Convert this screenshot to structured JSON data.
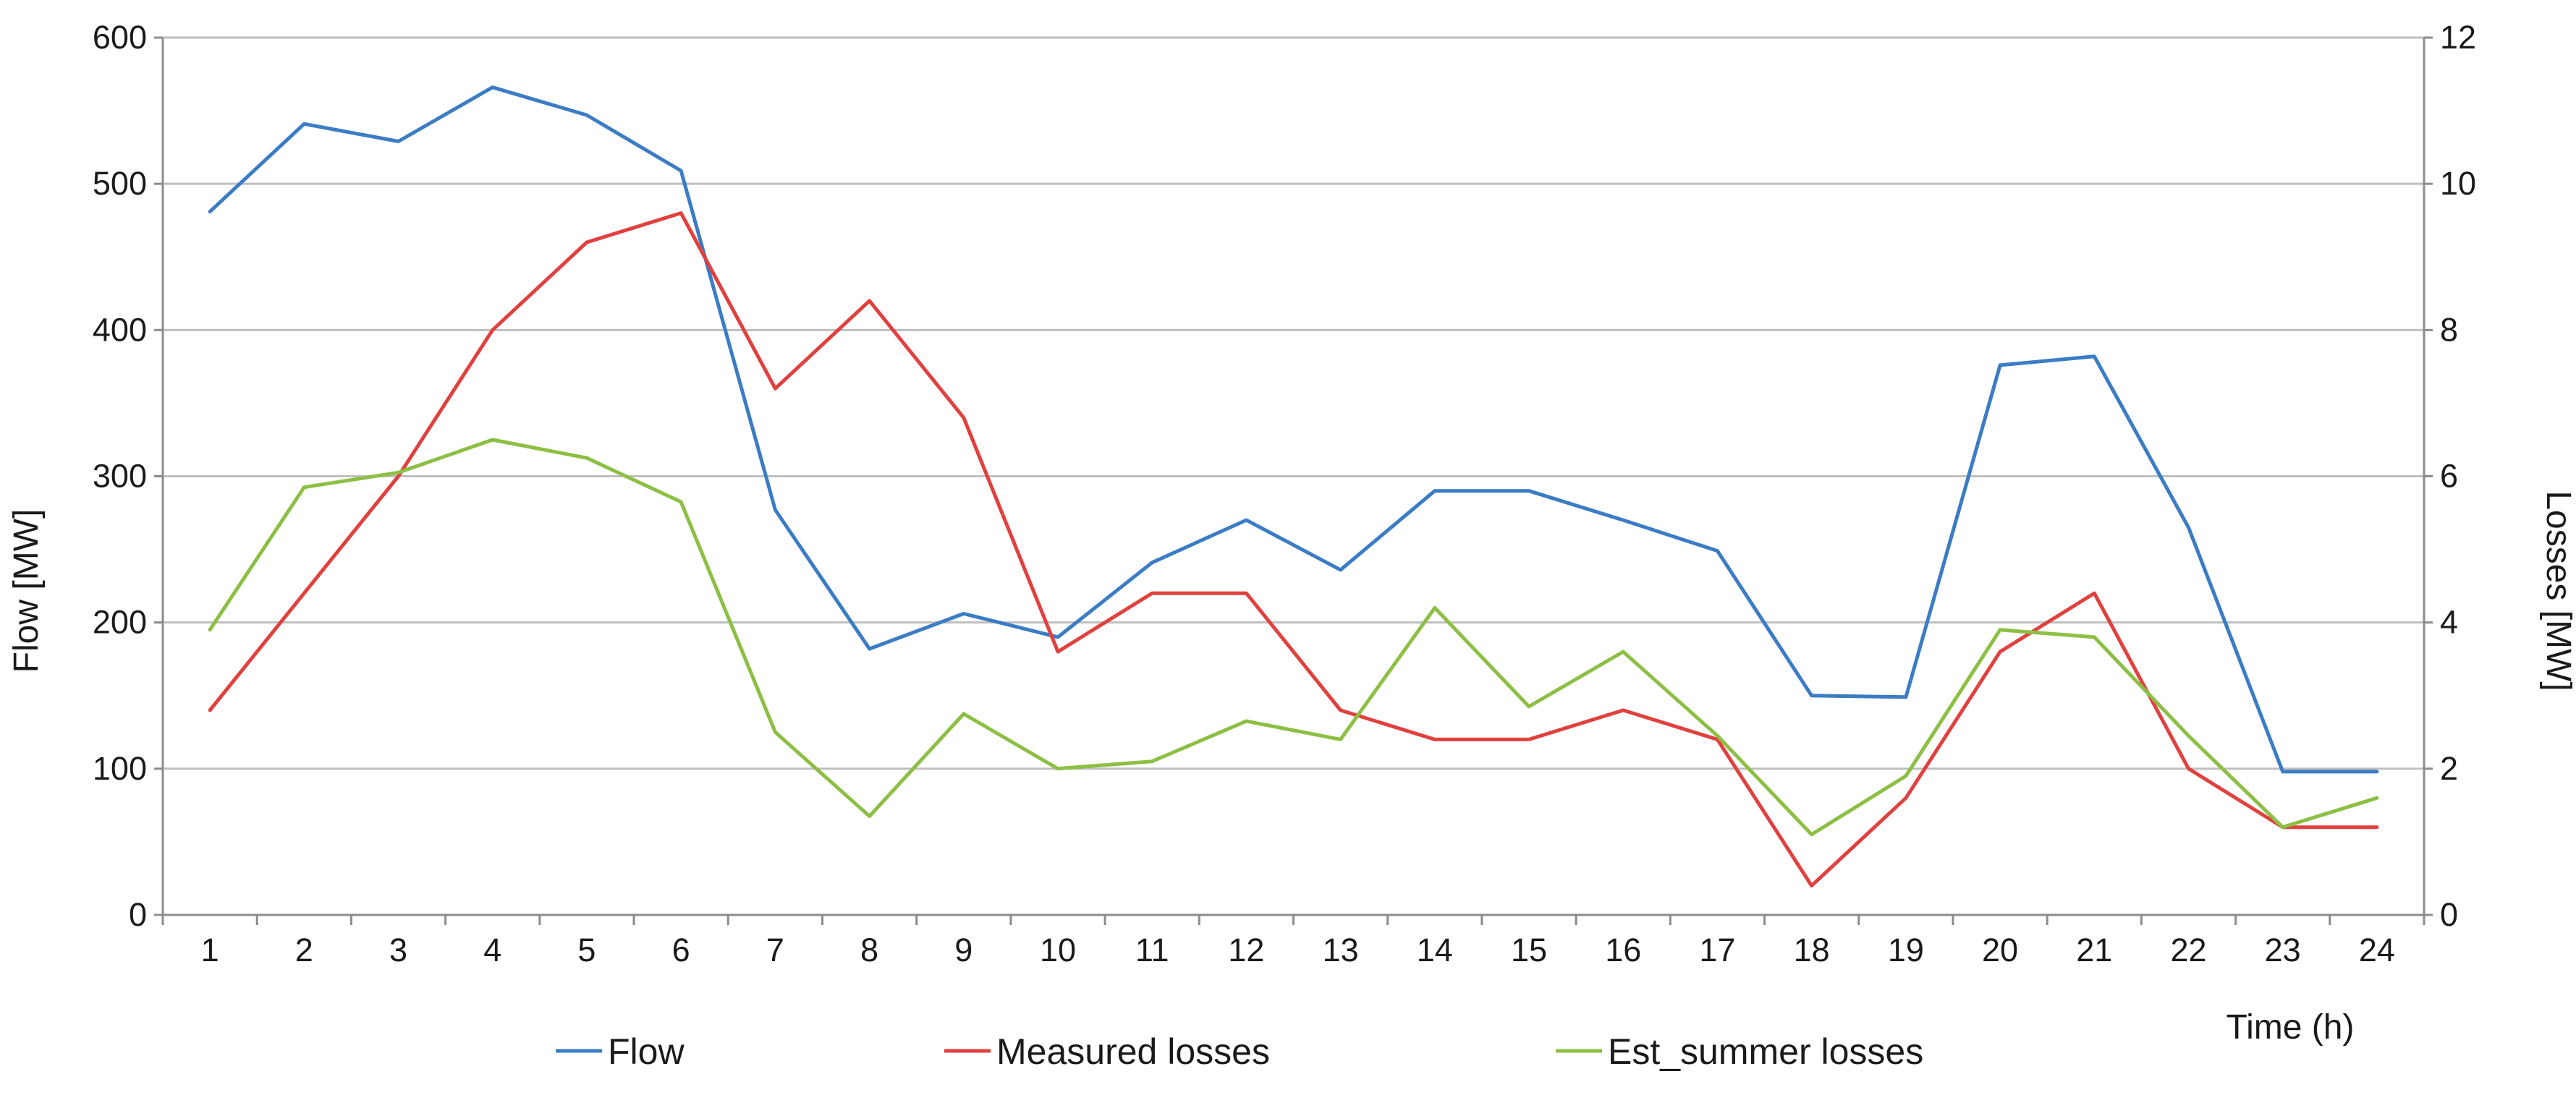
{
  "chart_data": {
    "type": "line",
    "title": "",
    "categories": [
      "1",
      "2",
      "3",
      "4",
      "5",
      "6",
      "7",
      "8",
      "9",
      "10",
      "11",
      "12",
      "13",
      "14",
      "15",
      "16",
      "17",
      "18",
      "19",
      "20",
      "21",
      "22",
      "23",
      "24"
    ],
    "xlabel": "Time (h)",
    "ylabel_left": "Flow [MW]",
    "ylabel_right": "Losses [MW]",
    "y_left": {
      "min": 0,
      "max": 600,
      "ticks": [
        0,
        100,
        200,
        300,
        400,
        500,
        600
      ]
    },
    "y_right": {
      "min": 0,
      "max": 12,
      "ticks": [
        0,
        2,
        4,
        6,
        8,
        10,
        12
      ]
    },
    "grid": true,
    "legend_position": "bottom",
    "series": [
      {
        "name": "Flow",
        "axis": "left",
        "color": "#3b7cc4",
        "values": [
          481,
          541,
          529,
          566,
          547,
          509,
          277,
          182,
          206,
          190,
          241,
          270,
          236,
          290,
          290,
          270,
          249,
          150,
          149,
          376,
          382,
          265,
          98,
          98
        ]
      },
      {
        "name": "Measured losses",
        "axis": "right",
        "color": "#e0413f",
        "values": [
          2.8,
          4.4,
          6.0,
          8.0,
          9.2,
          9.6,
          7.2,
          8.4,
          6.8,
          3.6,
          4.4,
          4.4,
          2.8,
          2.4,
          2.4,
          2.8,
          2.4,
          0.4,
          1.6,
          3.6,
          4.4,
          2.0,
          1.2,
          1.2
        ]
      },
      {
        "name": "Est_summer losses",
        "axis": "right",
        "color": "#8cbf44",
        "values": [
          3.9,
          5.85,
          6.05,
          6.5,
          6.25,
          5.65,
          2.5,
          1.35,
          2.75,
          2.0,
          2.1,
          2.65,
          2.4,
          4.2,
          2.85,
          3.6,
          2.45,
          1.1,
          1.9,
          3.9,
          3.8,
          2.45,
          1.2,
          1.6
        ]
      }
    ]
  }
}
